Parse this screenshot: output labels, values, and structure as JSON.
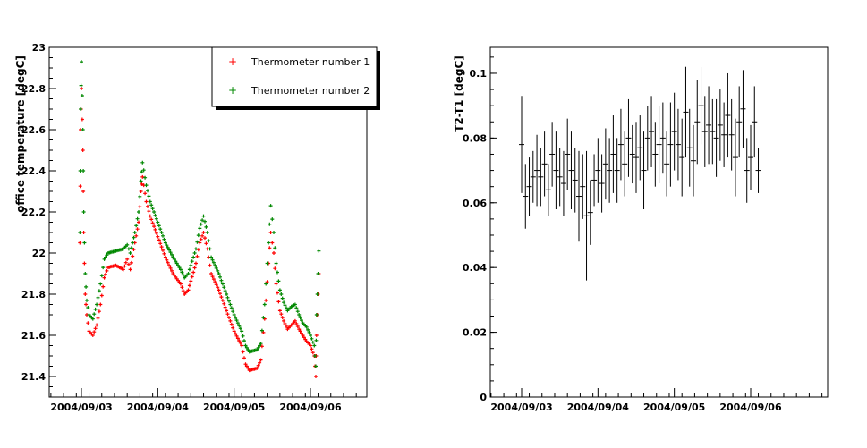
{
  "colors": {
    "background": "#ffffff",
    "series1": "#ff0000",
    "series2": "#008800",
    "errorbars": "#000000"
  },
  "chart_data": [
    {
      "type": "scatter",
      "ylabel": "office temperature [degC]",
      "ylim": [
        21.3,
        23.0
      ],
      "yticks": [
        "21.4",
        "21.6",
        "21.8",
        "22",
        "22.2",
        "22.4",
        "22.6",
        "22.8",
        "23"
      ],
      "xticks": [
        "2004/09/03",
        "2004/09/04",
        "2004/09/05",
        "2004/09/06"
      ],
      "legend_position": "top-right",
      "series": [
        {
          "name": "Thermometer number 1",
          "color": "#ff0000",
          "points": [
            [
              -0.02,
              22.05
            ],
            [
              -0.01,
              22.6
            ],
            [
              0.0,
              22.8
            ],
            [
              0.02,
              22.5
            ],
            [
              0.03,
              22.1
            ],
            [
              0.05,
              21.8
            ],
            [
              0.07,
              21.7
            ],
            [
              0.1,
              21.62
            ],
            [
              0.15,
              21.6
            ],
            [
              0.2,
              21.65
            ],
            [
              0.25,
              21.75
            ],
            [
              0.3,
              21.88
            ],
            [
              0.35,
              21.93
            ],
            [
              0.45,
              21.94
            ],
            [
              0.55,
              21.92
            ],
            [
              0.6,
              21.97
            ],
            [
              0.64,
              21.92
            ],
            [
              0.7,
              22.05
            ],
            [
              0.75,
              22.15
            ],
            [
              0.78,
              22.3
            ],
            [
              0.8,
              22.37
            ],
            [
              0.85,
              22.25
            ],
            [
              0.9,
              22.18
            ],
            [
              1.0,
              22.08
            ],
            [
              1.1,
              21.98
            ],
            [
              1.2,
              21.9
            ],
            [
              1.3,
              21.85
            ],
            [
              1.35,
              21.8
            ],
            [
              1.4,
              21.82
            ],
            [
              1.5,
              21.95
            ],
            [
              1.55,
              22.05
            ],
            [
              1.6,
              22.1
            ],
            [
              1.65,
              22.02
            ],
            [
              1.7,
              21.9
            ],
            [
              1.8,
              21.82
            ],
            [
              1.9,
              21.72
            ],
            [
              2.0,
              21.62
            ],
            [
              2.1,
              21.55
            ],
            [
              2.15,
              21.46
            ],
            [
              2.2,
              21.43
            ],
            [
              2.3,
              21.44
            ],
            [
              2.35,
              21.48
            ],
            [
              2.4,
              21.68
            ],
            [
              2.45,
              21.95
            ],
            [
              2.48,
              22.1
            ],
            [
              2.52,
              22.0
            ],
            [
              2.55,
              21.85
            ],
            [
              2.6,
              21.72
            ],
            [
              2.65,
              21.67
            ],
            [
              2.7,
              21.63
            ],
            [
              2.75,
              21.65
            ],
            [
              2.8,
              21.67
            ],
            [
              2.85,
              21.63
            ],
            [
              2.9,
              21.6
            ],
            [
              2.95,
              21.57
            ],
            [
              3.0,
              21.55
            ],
            [
              3.05,
              21.5
            ],
            [
              3.07,
              21.4
            ],
            [
              3.08,
              21.6
            ],
            [
              3.1,
              21.8
            ],
            [
              3.12,
              22.0
            ]
          ]
        },
        {
          "name": "Thermometer number 2",
          "color": "#008800",
          "points": [
            [
              -0.02,
              22.1
            ],
            [
              -0.01,
              22.7
            ],
            [
              0.0,
              22.93
            ],
            [
              0.02,
              22.6
            ],
            [
              0.03,
              22.2
            ],
            [
              0.05,
              21.9
            ],
            [
              0.07,
              21.77
            ],
            [
              0.1,
              21.7
            ],
            [
              0.15,
              21.68
            ],
            [
              0.2,
              21.75
            ],
            [
              0.25,
              21.85
            ],
            [
              0.3,
              21.97
            ],
            [
              0.35,
              22.0
            ],
            [
              0.45,
              22.01
            ],
            [
              0.55,
              22.02
            ],
            [
              0.6,
              22.04
            ],
            [
              0.64,
              22.0
            ],
            [
              0.7,
              22.1
            ],
            [
              0.75,
              22.2
            ],
            [
              0.78,
              22.35
            ],
            [
              0.8,
              22.44
            ],
            [
              0.85,
              22.33
            ],
            [
              0.9,
              22.25
            ],
            [
              1.0,
              22.15
            ],
            [
              1.1,
              22.05
            ],
            [
              1.2,
              21.98
            ],
            [
              1.3,
              21.92
            ],
            [
              1.35,
              21.88
            ],
            [
              1.4,
              21.9
            ],
            [
              1.5,
              22.02
            ],
            [
              1.55,
              22.12
            ],
            [
              1.6,
              22.18
            ],
            [
              1.65,
              22.1
            ],
            [
              1.7,
              21.98
            ],
            [
              1.8,
              21.9
            ],
            [
              1.9,
              21.8
            ],
            [
              2.0,
              21.7
            ],
            [
              2.1,
              21.62
            ],
            [
              2.15,
              21.55
            ],
            [
              2.2,
              21.52
            ],
            [
              2.3,
              21.53
            ],
            [
              2.35,
              21.56
            ],
            [
              2.4,
              21.75
            ],
            [
              2.45,
              22.05
            ],
            [
              2.48,
              22.23
            ],
            [
              2.52,
              22.1
            ],
            [
              2.55,
              21.95
            ],
            [
              2.6,
              21.82
            ],
            [
              2.65,
              21.76
            ],
            [
              2.7,
              21.72
            ],
            [
              2.75,
              21.74
            ],
            [
              2.8,
              21.75
            ],
            [
              2.85,
              21.7
            ],
            [
              2.9,
              21.66
            ],
            [
              2.95,
              21.64
            ],
            [
              3.0,
              21.6
            ],
            [
              3.05,
              21.55
            ],
            [
              3.07,
              21.45
            ],
            [
              3.08,
              21.7
            ],
            [
              3.1,
              21.9
            ],
            [
              3.12,
              22.12
            ]
          ]
        }
      ]
    },
    {
      "type": "scatter",
      "ylabel": "T2-T1 [degC]",
      "ylim": [
        0,
        0.108
      ],
      "yticks": [
        "0",
        "0.02",
        "0.04",
        "0.06",
        "0.08",
        "0.1"
      ],
      "xticks": [
        "2004/09/03",
        "2004/09/04",
        "2004/09/05",
        "2004/09/06"
      ],
      "series": [
        {
          "name": "",
          "points": [
            [
              0.0,
              0.078,
              0.015
            ],
            [
              0.05,
              0.062,
              0.01
            ],
            [
              0.1,
              0.065,
              0.009
            ],
            [
              0.15,
              0.068,
              0.008
            ],
            [
              0.2,
              0.07,
              0.011
            ],
            [
              0.25,
              0.068,
              0.009
            ],
            [
              0.3,
              0.072,
              0.01
            ],
            [
              0.35,
              0.064,
              0.008
            ],
            [
              0.4,
              0.075,
              0.01
            ],
            [
              0.45,
              0.07,
              0.012
            ],
            [
              0.5,
              0.068,
              0.009
            ],
            [
              0.55,
              0.066,
              0.01
            ],
            [
              0.6,
              0.075,
              0.011
            ],
            [
              0.65,
              0.07,
              0.012
            ],
            [
              0.7,
              0.067,
              0.01
            ],
            [
              0.75,
              0.062,
              0.014
            ],
            [
              0.8,
              0.065,
              0.01
            ],
            [
              0.85,
              0.056,
              0.02
            ],
            [
              0.9,
              0.057,
              0.01
            ],
            [
              0.95,
              0.067,
              0.008
            ],
            [
              1.0,
              0.07,
              0.01
            ],
            [
              1.05,
              0.066,
              0.009
            ],
            [
              1.1,
              0.072,
              0.011
            ],
            [
              1.15,
              0.07,
              0.01
            ],
            [
              1.2,
              0.075,
              0.012
            ],
            [
              1.25,
              0.07,
              0.01
            ],
            [
              1.3,
              0.078,
              0.011
            ],
            [
              1.35,
              0.072,
              0.01
            ],
            [
              1.4,
              0.08,
              0.012
            ],
            [
              1.45,
              0.075,
              0.009
            ],
            [
              1.5,
              0.074,
              0.011
            ],
            [
              1.55,
              0.077,
              0.01
            ],
            [
              1.6,
              0.07,
              0.012
            ],
            [
              1.65,
              0.08,
              0.01
            ],
            [
              1.7,
              0.082,
              0.011
            ],
            [
              1.75,
              0.075,
              0.01
            ],
            [
              1.8,
              0.078,
              0.012
            ],
            [
              1.85,
              0.08,
              0.011
            ],
            [
              1.9,
              0.072,
              0.01
            ],
            [
              1.95,
              0.078,
              0.013
            ],
            [
              2.0,
              0.082,
              0.012
            ],
            [
              2.05,
              0.078,
              0.011
            ],
            [
              2.1,
              0.074,
              0.012
            ],
            [
              2.15,
              0.088,
              0.014
            ],
            [
              2.2,
              0.077,
              0.012
            ],
            [
              2.25,
              0.073,
              0.011
            ],
            [
              2.3,
              0.085,
              0.013
            ],
            [
              2.35,
              0.09,
              0.012
            ],
            [
              2.4,
              0.082,
              0.011
            ],
            [
              2.45,
              0.084,
              0.012
            ],
            [
              2.5,
              0.082,
              0.01
            ],
            [
              2.55,
              0.08,
              0.012
            ],
            [
              2.6,
              0.084,
              0.011
            ],
            [
              2.65,
              0.081,
              0.01
            ],
            [
              2.7,
              0.087,
              0.013
            ],
            [
              2.75,
              0.081,
              0.011
            ],
            [
              2.8,
              0.074,
              0.012
            ],
            [
              2.85,
              0.085,
              0.011
            ],
            [
              2.9,
              0.089,
              0.012
            ],
            [
              2.95,
              0.07,
              0.01
            ],
            [
              3.0,
              0.074,
              0.01
            ],
            [
              3.05,
              0.085,
              0.011
            ],
            [
              3.1,
              0.07,
              0.007
            ]
          ]
        }
      ]
    }
  ]
}
